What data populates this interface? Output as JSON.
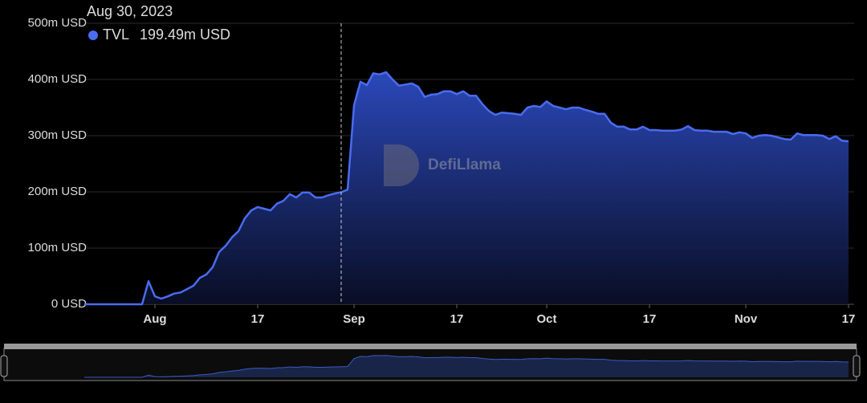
{
  "chart_data": {
    "type": "area",
    "tooltip": {
      "title": "Aug 30, 2023",
      "value_label": "199.49m USD"
    },
    "watermark": "DefiLlama",
    "x": [
      "2023-07-21",
      "2023-07-22",
      "2023-07-23",
      "2023-07-24",
      "2023-07-25",
      "2023-07-26",
      "2023-07-27",
      "2023-07-28",
      "2023-07-29",
      "2023-07-30",
      "2023-07-31",
      "2023-08-01",
      "2023-08-02",
      "2023-08-03",
      "2023-08-04",
      "2023-08-05",
      "2023-08-06",
      "2023-08-07",
      "2023-08-08",
      "2023-08-09",
      "2023-08-10",
      "2023-08-11",
      "2023-08-12",
      "2023-08-13",
      "2023-08-14",
      "2023-08-15",
      "2023-08-16",
      "2023-08-17",
      "2023-08-18",
      "2023-08-19",
      "2023-08-20",
      "2023-08-21",
      "2023-08-22",
      "2023-08-23",
      "2023-08-24",
      "2023-08-25",
      "2023-08-26",
      "2023-08-27",
      "2023-08-28",
      "2023-08-29",
      "2023-08-30",
      "2023-08-31",
      "2023-09-01",
      "2023-09-02",
      "2023-09-03",
      "2023-09-04",
      "2023-09-05",
      "2023-09-06",
      "2023-09-07",
      "2023-09-08",
      "2023-09-09",
      "2023-09-10",
      "2023-09-11",
      "2023-09-12",
      "2023-09-13",
      "2023-09-14",
      "2023-09-15",
      "2023-09-16",
      "2023-09-17",
      "2023-09-18",
      "2023-09-19",
      "2023-09-20",
      "2023-09-21",
      "2023-09-22",
      "2023-09-23",
      "2023-09-24",
      "2023-09-25",
      "2023-09-26",
      "2023-09-27",
      "2023-09-28",
      "2023-09-29",
      "2023-09-30",
      "2023-10-01",
      "2023-10-02",
      "2023-10-03",
      "2023-10-04",
      "2023-10-05",
      "2023-10-06",
      "2023-10-07",
      "2023-10-08",
      "2023-10-09",
      "2023-10-10",
      "2023-10-11",
      "2023-10-12",
      "2023-10-13",
      "2023-10-14",
      "2023-10-15",
      "2023-10-16",
      "2023-10-17",
      "2023-10-18",
      "2023-10-19",
      "2023-10-20",
      "2023-10-21",
      "2023-10-22",
      "2023-10-23",
      "2023-10-24",
      "2023-10-25",
      "2023-10-26",
      "2023-10-27",
      "2023-10-28",
      "2023-10-29",
      "2023-10-30",
      "2023-10-31",
      "2023-11-01",
      "2023-11-02",
      "2023-11-03",
      "2023-11-04",
      "2023-11-05",
      "2023-11-06",
      "2023-11-07",
      "2023-11-08",
      "2023-11-09",
      "2023-11-10",
      "2023-11-11",
      "2023-11-12",
      "2023-11-13",
      "2023-11-14",
      "2023-11-15",
      "2023-11-16",
      "2023-11-17"
    ],
    "series": [
      {
        "name": "TVL",
        "color": "#4a6cf0",
        "values": [
          0,
          0,
          0,
          0,
          0,
          0,
          0,
          0,
          0,
          0,
          41,
          14,
          10,
          14,
          19,
          21,
          27,
          33,
          47,
          53,
          66,
          93,
          104,
          119,
          130,
          153,
          167,
          173,
          170,
          167,
          179,
          184,
          196,
          190,
          199,
          199,
          190,
          190,
          194,
          197,
          199.49,
          204,
          354,
          396,
          390,
          411,
          409,
          413,
          400,
          389,
          391,
          393,
          387,
          369,
          373,
          374,
          379,
          379,
          374,
          379,
          371,
          371,
          356,
          344,
          337,
          341,
          340,
          339,
          337,
          350,
          353,
          351,
          361,
          353,
          350,
          347,
          350,
          350,
          346,
          343,
          339,
          339,
          323,
          316,
          316,
          311,
          311,
          316,
          310,
          310,
          309,
          309,
          309,
          311,
          317,
          310,
          309,
          309,
          307,
          307,
          307,
          303,
          306,
          304,
          296,
          300,
          301,
          300,
          297,
          294,
          293,
          304,
          301,
          301,
          301,
          300,
          294,
          299,
          291,
          290
        ]
      }
    ],
    "xlim": [
      "2023-07-21",
      "2023-11-18"
    ],
    "xticks": [
      {
        "value": "2023-08-01",
        "label": "Aug"
      },
      {
        "value": "2023-08-17",
        "label": "17"
      },
      {
        "value": "2023-09-01",
        "label": "Sep"
      },
      {
        "value": "2023-09-17",
        "label": "17"
      },
      {
        "value": "2023-10-01",
        "label": "Oct"
      },
      {
        "value": "2023-10-17",
        "label": "17"
      },
      {
        "value": "2023-11-01",
        "label": "Nov"
      },
      {
        "value": "2023-11-17",
        "label": "17"
      }
    ],
    "ylim": [
      0,
      500
    ],
    "yticks": [
      {
        "value": 0,
        "label": "0 USD"
      },
      {
        "value": 100,
        "label": "100m USD"
      },
      {
        "value": 200,
        "label": "200m USD"
      },
      {
        "value": 300,
        "label": "300m USD"
      },
      {
        "value": 400,
        "label": "400m USD"
      },
      {
        "value": 500,
        "label": "500m USD"
      }
    ],
    "grid": true
  }
}
